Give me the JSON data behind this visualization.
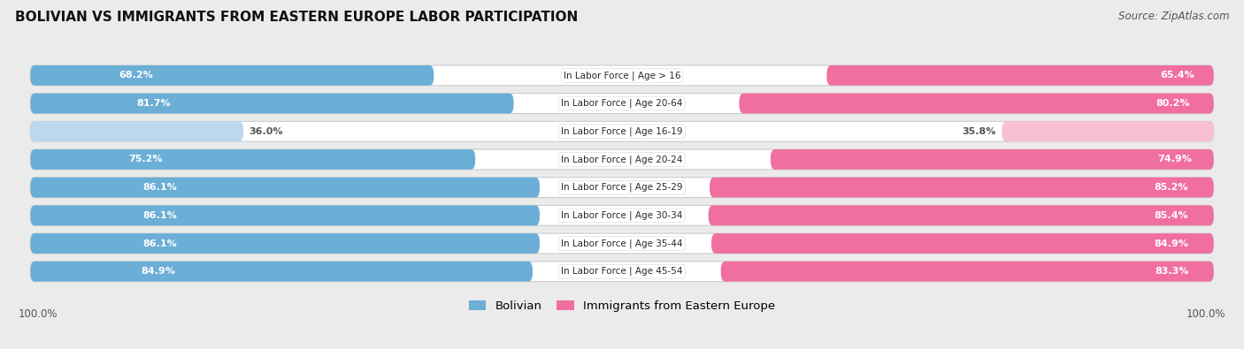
{
  "title": "BOLIVIAN VS IMMIGRANTS FROM EASTERN EUROPE LABOR PARTICIPATION",
  "source": "Source: ZipAtlas.com",
  "categories": [
    "In Labor Force | Age > 16",
    "In Labor Force | Age 20-64",
    "In Labor Force | Age 16-19",
    "In Labor Force | Age 20-24",
    "In Labor Force | Age 25-29",
    "In Labor Force | Age 30-34",
    "In Labor Force | Age 35-44",
    "In Labor Force | Age 45-54"
  ],
  "bolivian": [
    68.2,
    81.7,
    36.0,
    75.2,
    86.1,
    86.1,
    86.1,
    84.9
  ],
  "eastern_europe": [
    65.4,
    80.2,
    35.8,
    74.9,
    85.2,
    85.4,
    84.9,
    83.3
  ],
  "bolivian_color": "#6BAED6",
  "bolivian_color_light": "#BDD7EE",
  "eastern_europe_color": "#F06FA0",
  "eastern_europe_color_light": "#F9C0D5",
  "label_color_white": "#FFFFFF",
  "label_color_dark": "#555555",
  "bg_color": "#EBEBEB",
  "row_bg_color": "#FFFFFF",
  "max_val": 100.0,
  "bar_height": 0.72,
  "legend_bolivian": "Bolivian",
  "legend_eastern": "Immigrants from Eastern Europe"
}
